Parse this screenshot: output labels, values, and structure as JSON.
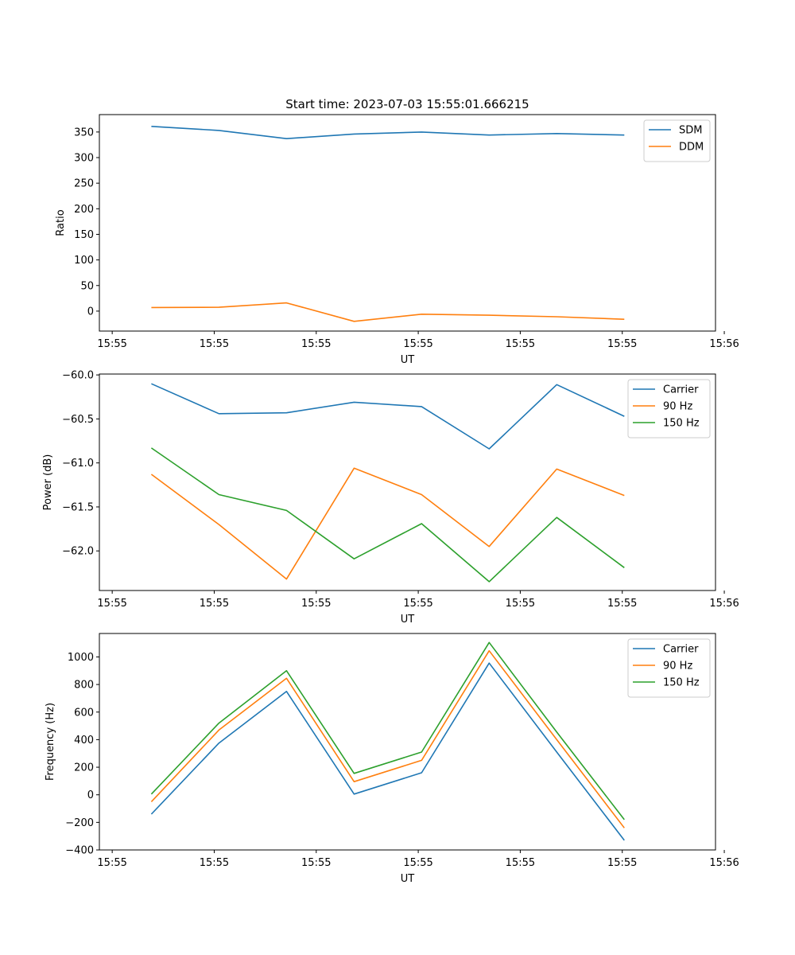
{
  "chart_data": [
    {
      "type": "line",
      "title": "Start time: 2023-07-03 15:55:01.666215",
      "xlabel": "UT",
      "ylabel": "Ratio",
      "x": [
        1,
        2,
        3,
        4,
        5,
        6,
        7,
        8
      ],
      "xlim": [
        0.23,
        9.35
      ],
      "xticks": [
        0.42,
        1.93,
        3.44,
        4.95,
        6.46,
        7.97,
        9.48
      ],
      "xtick_labels": [
        "15:55",
        "15:55",
        "15:55",
        "15:55",
        "15:55",
        "15:55",
        "15:56"
      ],
      "ylim": [
        -39,
        384
      ],
      "yticks": [
        0,
        50,
        100,
        150,
        200,
        250,
        300,
        350
      ],
      "ytick_labels": [
        "0",
        "50",
        "100",
        "150",
        "200",
        "250",
        "300",
        "350"
      ],
      "legend_position": "top-right",
      "series": [
        {
          "name": "SDM",
          "color": "#1f77b4",
          "values": [
            361,
            353,
            337,
            346,
            350,
            344,
            347,
            344
          ]
        },
        {
          "name": "DDM",
          "color": "#ff7f0e",
          "values": [
            7,
            7.5,
            16,
            -20,
            -6,
            -8,
            -11,
            -16
          ]
        }
      ]
    },
    {
      "type": "line",
      "title": "",
      "xlabel": "UT",
      "ylabel": "Power (dB)",
      "x": [
        1,
        2,
        3,
        4,
        5,
        6,
        7,
        8
      ],
      "xlim": [
        0.23,
        9.35
      ],
      "xticks": [
        0.42,
        1.93,
        3.44,
        4.95,
        6.46,
        7.97,
        9.48
      ],
      "xtick_labels": [
        "15:55",
        "15:55",
        "15:55",
        "15:55",
        "15:55",
        "15:55",
        "15:56"
      ],
      "ylim": [
        -62.45,
        -59.99
      ],
      "yticks": [
        -60.0,
        -60.5,
        -61.0,
        -61.5,
        -62.0
      ],
      "ytick_labels": [
        "−60.0",
        "−60.5",
        "−61.0",
        "−61.5",
        "−62.0"
      ],
      "legend_position": "top-right",
      "series": [
        {
          "name": "Carrier",
          "color": "#1f77b4",
          "values": [
            -60.1,
            -60.44,
            -60.43,
            -60.31,
            -60.36,
            -60.84,
            -60.11,
            -60.47
          ]
        },
        {
          "name": "90 Hz",
          "color": "#ff7f0e",
          "values": [
            -61.13,
            -61.7,
            -62.32,
            -61.06,
            -61.36,
            -61.95,
            -61.07,
            -61.37
          ]
        },
        {
          "name": "150 Hz",
          "color": "#2ca02c",
          "values": [
            -60.83,
            -61.36,
            -61.54,
            -62.09,
            -61.69,
            -62.35,
            -61.62,
            -62.19
          ]
        }
      ]
    },
    {
      "type": "line",
      "title": "",
      "xlabel": "UT",
      "ylabel": "Frequency (Hz)",
      "x": [
        1,
        2,
        3,
        4,
        5,
        6,
        7,
        8
      ],
      "xlim": [
        0.23,
        9.35
      ],
      "xticks": [
        0.42,
        1.93,
        3.44,
        4.95,
        6.46,
        7.97,
        9.48
      ],
      "xtick_labels": [
        "15:55",
        "15:55",
        "15:55",
        "15:55",
        "15:55",
        "15:55",
        "15:56"
      ],
      "ylim": [
        -400,
        1170
      ],
      "yticks": [
        -400,
        -200,
        0,
        200,
        400,
        600,
        800,
        1000
      ],
      "ytick_labels": [
        "−400",
        "−200",
        "0",
        "200",
        "400",
        "600",
        "800",
        "1000"
      ],
      "legend_position": "top-right",
      "series": [
        {
          "name": "Carrier",
          "color": "#1f77b4",
          "values": [
            -140,
            375,
            750,
            5,
            160,
            955,
            310,
            -330
          ]
        },
        {
          "name": "90 Hz",
          "color": "#ff7f0e",
          "values": [
            -50,
            470,
            845,
            95,
            250,
            1045,
            400,
            -240
          ]
        },
        {
          "name": "150 Hz",
          "color": "#2ca02c",
          "values": [
            5,
            520,
            900,
            155,
            310,
            1105,
            455,
            -180
          ]
        }
      ]
    }
  ]
}
